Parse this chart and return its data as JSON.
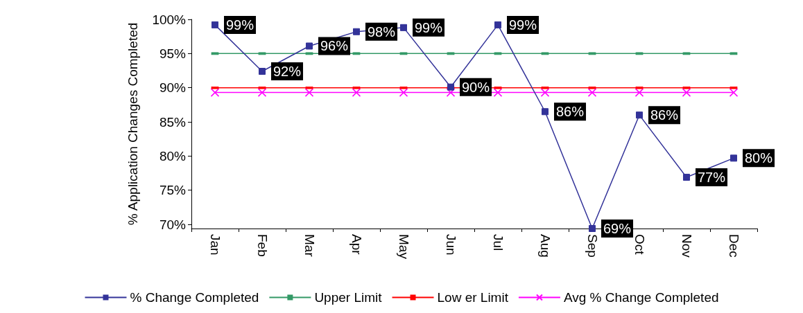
{
  "chart_data": {
    "type": "line",
    "ylabel": "% Application Changes Completed",
    "categories": [
      "Jan",
      "Feb",
      "Mar",
      "Apr",
      "May",
      "Jun",
      "Jul",
      "Aug",
      "Sep",
      "Oct",
      "Nov",
      "Dec"
    ],
    "ylim": [
      69.4,
      100
    ],
    "yticks": [
      {
        "value": 70,
        "label": "70%"
      },
      {
        "value": 75,
        "label": "75%"
      },
      {
        "value": 80,
        "label": "80%"
      },
      {
        "value": 85,
        "label": "85%"
      },
      {
        "value": 90,
        "label": "90%"
      },
      {
        "value": 95,
        "label": "95%"
      },
      {
        "value": 100,
        "label": "100%"
      }
    ],
    "grid": false,
    "legend": "bottom",
    "series": [
      {
        "name": "% Change Completed",
        "color": "#333399",
        "marker": "square",
        "values": [
          99.2,
          92.4,
          96.1,
          98.2,
          98.8,
          90.1,
          99.2,
          86.5,
          69.4,
          86,
          76.9,
          79.7
        ],
        "value_labels": [
          "99%",
          "92%",
          "96%",
          "98%",
          "99%",
          "90%",
          "99%",
          "86%",
          "69%",
          "86%",
          "77%",
          "80%"
        ]
      },
      {
        "name": "Upper Limit",
        "color": "#339966",
        "marker": "square",
        "values": [
          95,
          95,
          95,
          95,
          95,
          95,
          95,
          95,
          95,
          95,
          95,
          95
        ]
      },
      {
        "name": "Low er Limit",
        "color": "#ff0000",
        "marker": "square",
        "values": [
          90,
          90,
          90,
          90,
          90,
          90,
          90,
          90,
          90,
          90,
          90,
          90
        ]
      },
      {
        "name": "Avg % Change Completed",
        "color": "#ff00ff",
        "marker": "cross",
        "values": [
          89.3,
          89.3,
          89.3,
          89.3,
          89.3,
          89.3,
          89.3,
          89.3,
          89.3,
          89.3,
          89.3,
          89.3
        ]
      }
    ]
  }
}
